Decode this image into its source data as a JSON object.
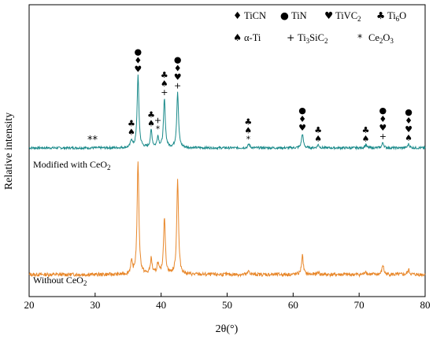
{
  "chart_data": {
    "type": "line",
    "xlabel": "2θ(°)",
    "ylabel": "Relative intensity",
    "xlim": [
      20,
      80
    ],
    "x_ticks": [
      "20",
      "30",
      "40",
      "50",
      "60",
      "70",
      "80"
    ],
    "y_ticks": "none",
    "grid": false,
    "legend": {
      "placement": "top-right",
      "entries": [
        {
          "symbol": "♦",
          "label": "TiCN"
        },
        {
          "symbol": "●",
          "label": "TiN"
        },
        {
          "symbol": "♥",
          "label": "TiVC",
          "sub": "2"
        },
        {
          "symbol": "♣",
          "label": "Ti",
          "sub": "6",
          "suffix": "O"
        },
        {
          "symbol": "♠",
          "label": "α-Ti"
        },
        {
          "symbol": "+",
          "label": "Ti",
          "sub": "3",
          "suffix": "SiC",
          "sub2": "2"
        },
        {
          "symbol": "*",
          "label": "Ce",
          "sub": "2",
          "suffix": "O",
          "sub2": "3"
        }
      ]
    },
    "series": [
      {
        "name": "Modified with CeO",
        "name_sub": "2",
        "color": "#1a8a8a",
        "baseline": 0.0,
        "peaks": [
          {
            "x": 35.5,
            "y": 0.1
          },
          {
            "x": 36.5,
            "y": 0.92
          },
          {
            "x": 38.5,
            "y": 0.22
          },
          {
            "x": 39.5,
            "y": 0.14
          },
          {
            "x": 40.5,
            "y": 0.62
          },
          {
            "x": 42.5,
            "y": 0.71
          },
          {
            "x": 53.3,
            "y": 0.05
          },
          {
            "x": 61.4,
            "y": 0.18
          },
          {
            "x": 63.8,
            "y": 0.04
          },
          {
            "x": 71.0,
            "y": 0.04
          },
          {
            "x": 73.6,
            "y": 0.07
          },
          {
            "x": 77.5,
            "y": 0.05
          }
        ],
        "annotations": [
          {
            "x": 29.6,
            "symbols": [
              "*",
              "*"
            ],
            "inline": true
          },
          {
            "x": 35.5,
            "symbols": [
              "♣",
              "♠"
            ]
          },
          {
            "x": 36.5,
            "symbols": [
              "●",
              "♦",
              "♥"
            ]
          },
          {
            "x": 38.5,
            "symbols": [
              "♣",
              "♠"
            ]
          },
          {
            "x": 39.5,
            "symbols": [
              "+",
              "*"
            ]
          },
          {
            "x": 40.5,
            "symbols": [
              "♣",
              "♠",
              "+"
            ]
          },
          {
            "x": 42.5,
            "symbols": [
              "●",
              "♦",
              "♥",
              "+"
            ]
          },
          {
            "x": 53.2,
            "symbols": [
              "♣",
              "♠",
              "*"
            ]
          },
          {
            "x": 61.4,
            "symbols": [
              "●",
              "♦",
              "♥"
            ]
          },
          {
            "x": 63.8,
            "symbols": [
              "♣",
              "♠"
            ]
          },
          {
            "x": 71.0,
            "symbols": [
              "♣",
              "♠"
            ]
          },
          {
            "x": 73.6,
            "symbols": [
              "●",
              "♦",
              "♥",
              "+"
            ]
          },
          {
            "x": 77.5,
            "symbols": [
              "●",
              "♦",
              "♥",
              "♠"
            ]
          }
        ]
      },
      {
        "name": "Without CeO",
        "name_sub": "2",
        "color": "#e8872a",
        "baseline": 0.0,
        "peaks": [
          {
            "x": 35.5,
            "y": 0.1
          },
          {
            "x": 36.5,
            "y": 0.95
          },
          {
            "x": 38.5,
            "y": 0.13
          },
          {
            "x": 39.5,
            "y": 0.09
          },
          {
            "x": 40.5,
            "y": 0.48
          },
          {
            "x": 42.5,
            "y": 0.8
          },
          {
            "x": 53.3,
            "y": 0.03
          },
          {
            "x": 61.4,
            "y": 0.16
          },
          {
            "x": 63.8,
            "y": 0.02
          },
          {
            "x": 71.0,
            "y": 0.03
          },
          {
            "x": 73.6,
            "y": 0.08
          },
          {
            "x": 77.5,
            "y": 0.04
          }
        ],
        "annotations": []
      }
    ]
  }
}
